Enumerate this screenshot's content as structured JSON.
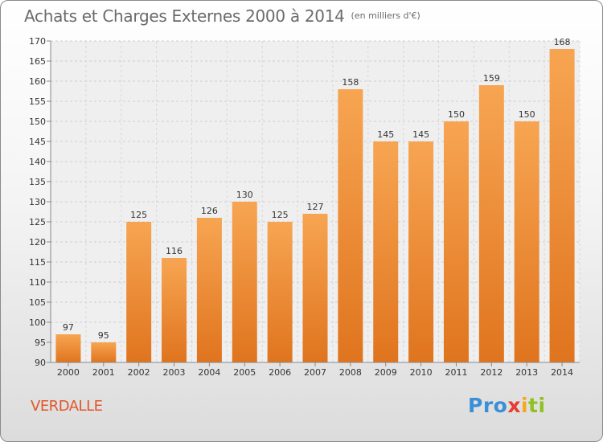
{
  "title": "Achats et Charges Externes 2000 à 2014",
  "subtitle": "(en milliers d'€)",
  "commune": "VERDALLE",
  "logo": {
    "p1": "Pro",
    "p2": "x",
    "p3": "i",
    "p4": "ti"
  },
  "colors": {
    "bar_top": "#f7a552",
    "bar_bottom": "#e0741e",
    "title": "#6b6b6b",
    "commune": "#e0572a"
  },
  "chart_data": {
    "type": "bar",
    "categories": [
      "2000",
      "2001",
      "2002",
      "2003",
      "2004",
      "2005",
      "2006",
      "2007",
      "2008",
      "2009",
      "2010",
      "2011",
      "2012",
      "2013",
      "2014"
    ],
    "values": [
      97,
      95,
      125,
      116,
      126,
      130,
      125,
      127,
      158,
      145,
      145,
      150,
      159,
      150,
      168
    ],
    "ylim": [
      90,
      170
    ],
    "yticks": [
      90,
      95,
      100,
      105,
      110,
      115,
      120,
      125,
      130,
      135,
      140,
      145,
      150,
      155,
      160,
      165,
      170
    ],
    "grid": true,
    "legend": "none"
  }
}
